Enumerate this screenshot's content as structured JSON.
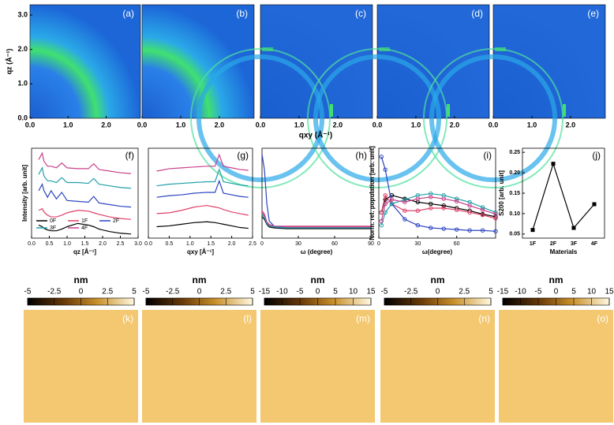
{
  "images": {
    "ylabel": "qz (Å⁻¹)",
    "xlabel": "qxy (Å⁻¹)",
    "xlim": [
      0,
      2.9
    ],
    "ylim": [
      0,
      3.3
    ],
    "xticks": [
      {
        "value": 0,
        "label": "0.0"
      },
      {
        "value": 1,
        "label": "1.0"
      },
      {
        "value": 2,
        "label": "2.0"
      }
    ],
    "yticks": [
      {
        "value": 0,
        "label": "0.0"
      },
      {
        "value": 1,
        "label": "1.0"
      },
      {
        "value": 2,
        "label": "2.0"
      },
      {
        "value": 3,
        "label": "3.0"
      }
    ],
    "panels": [
      "(a)",
      "(b)",
      "(c)",
      "(d)",
      "(e)"
    ]
  },
  "chart_data": [
    {
      "type": "line",
      "label": "(f)",
      "ylabel": "Intensity [arb. unit]",
      "xlabel": "qz [Å⁻¹]",
      "xlim": [
        0,
        3
      ],
      "ylim": [
        0,
        11
      ],
      "xticks": [
        {
          "value": 0,
          "label": "0.0"
        },
        0.5,
        {
          "value": 1,
          "label": "1.0"
        },
        1.5,
        {
          "value": 2,
          "label": "2.0"
        },
        2.5,
        {
          "value": 3,
          "label": "3.0"
        }
      ],
      "legend": "lower right",
      "x": [
        0.2,
        0.3,
        0.35,
        0.45,
        0.55,
        0.7,
        0.85,
        1.0,
        1.3,
        1.6,
        1.75,
        1.9,
        2.2,
        2.5,
        2.8
      ],
      "series": [
        {
          "name": "0F",
          "color": "#000000",
          "values": [
            1.6,
            1.4,
            1.2,
            1.0,
            0.9,
            0.9,
            1.1,
            1.4,
            1.8,
            1.6,
            1.4,
            1.1,
            0.8,
            0.6,
            0.5
          ]
        },
        {
          "name": "1F",
          "color": "#e0406a",
          "values": [
            3.4,
            3.6,
            3.2,
            2.8,
            2.6,
            2.6,
            2.8,
            3.1,
            3.4,
            3.3,
            3.1,
            2.9,
            2.6,
            2.4,
            2.3
          ]
        },
        {
          "name": "2F",
          "color": "#2a44c0",
          "values": [
            5.8,
            6.6,
            5.8,
            5.0,
            5.8,
            4.8,
            5.6,
            4.6,
            4.5,
            4.4,
            5.1,
            4.3,
            4.1,
            3.9,
            3.8
          ]
        },
        {
          "name": "3F",
          "color": "#20a0a8",
          "values": [
            7.8,
            8.6,
            7.6,
            7.0,
            7.0,
            6.8,
            7.4,
            6.8,
            6.8,
            6.7,
            7.3,
            6.6,
            6.4,
            6.2,
            6.1
          ]
        },
        {
          "name": "4F",
          "color": "#c8408a",
          "values": [
            9.6,
            10.4,
            9.4,
            8.8,
            8.8,
            8.6,
            9.2,
            8.6,
            8.5,
            8.5,
            9.1,
            8.4,
            8.2,
            8.0,
            7.9
          ]
        }
      ]
    },
    {
      "type": "line",
      "label": "(g)",
      "xlabel": "qxy [Å⁻¹]",
      "xlim": [
        0,
        2.5
      ],
      "ylim": [
        0,
        11
      ],
      "xticks": [
        {
          "value": 0,
          "label": "0.0"
        },
        0.5,
        {
          "value": 1,
          "label": "1.0"
        },
        1.5,
        {
          "value": 2,
          "label": "2.0"
        },
        2.5
      ],
      "x": [
        0.2,
        0.5,
        0.8,
        1.1,
        1.4,
        1.6,
        1.7,
        1.8,
        2.0,
        2.2,
        2.4
      ],
      "series": [
        {
          "color": "#000000",
          "values": [
            1.4,
            1.5,
            1.7,
            1.9,
            2.0,
            1.9,
            1.8,
            1.7,
            1.5,
            1.3,
            1.2
          ]
        },
        {
          "color": "#e0406a",
          "values": [
            3.0,
            3.1,
            3.4,
            3.8,
            4.0,
            3.8,
            3.7,
            3.5,
            3.2,
            3.0,
            2.8
          ]
        },
        {
          "color": "#2a44c0",
          "values": [
            5.0,
            5.2,
            5.3,
            5.5,
            5.6,
            5.6,
            7.0,
            5.5,
            5.3,
            5.1,
            5.0
          ]
        },
        {
          "color": "#20a0a8",
          "values": [
            6.4,
            6.6,
            6.7,
            6.8,
            6.9,
            6.9,
            8.4,
            6.9,
            6.7,
            6.5,
            6.4
          ]
        },
        {
          "color": "#c8408a",
          "values": [
            8.2,
            8.5,
            8.6,
            8.7,
            8.8,
            8.8,
            10.2,
            8.8,
            8.6,
            8.4,
            8.3
          ]
        }
      ]
    },
    {
      "type": "line",
      "label": "(h)",
      "xlabel": "ω (degree)",
      "xlim": [
        0,
        90
      ],
      "ylim": [
        0,
        10.5
      ],
      "xticks": [
        0,
        30,
        60,
        90
      ],
      "x": [
        0,
        2,
        4,
        6,
        10,
        20,
        40,
        60,
        90
      ],
      "series": [
        {
          "color": "#000000",
          "values": [
            2.5,
            2.2,
            1.6,
            1.3,
            1.2,
            1.1,
            1.1,
            1.1,
            1.1
          ]
        },
        {
          "color": "#e0406a",
          "values": [
            3.0,
            2.6,
            1.8,
            1.5,
            1.3,
            1.3,
            1.3,
            1.3,
            1.3
          ]
        },
        {
          "color": "#2a44c0",
          "values": [
            9.8,
            8,
            4,
            2,
            1.4,
            1.2,
            1.2,
            1.2,
            1.2
          ]
        },
        {
          "color": "#20a0a8",
          "values": [
            2.8,
            2.4,
            1.7,
            1.4,
            1.3,
            1.2,
            1.2,
            1.2,
            1.2
          ]
        },
        {
          "color": "#c8408a",
          "values": [
            3.2,
            2.8,
            1.9,
            1.6,
            1.4,
            1.4,
            1.4,
            1.4,
            1.4
          ]
        }
      ]
    },
    {
      "type": "line",
      "label": "(i)",
      "markers": true,
      "ylabel": "Norm. rel. population [arb. unit]",
      "xlabel": "ω(degree)",
      "xlim": [
        0,
        90
      ],
      "ylim": [
        0,
        10.5
      ],
      "xticks": [
        0,
        30,
        60
      ],
      "x": [
        2,
        5,
        10,
        20,
        30,
        40,
        50,
        60,
        70,
        80,
        90
      ],
      "series": [
        {
          "color": "#000000",
          "values": [
            3,
            4.5,
            5,
            4.6,
            4.2,
            4,
            3.8,
            3.5,
            3.2,
            2.8,
            2.5
          ]
        },
        {
          "color": "#e0406a",
          "values": [
            3,
            5,
            4,
            3.2,
            3.2,
            3.5,
            3.5,
            3.3,
            3,
            2.7,
            2.3
          ]
        },
        {
          "color": "#2a44c0",
          "values": [
            9.5,
            8,
            4,
            2.2,
            1.5,
            1.2,
            1.1,
            1.0,
            0.9,
            0.9,
            0.8
          ]
        },
        {
          "color": "#20a0a8",
          "values": [
            1.5,
            3,
            4,
            4.5,
            5,
            5.2,
            5,
            4.6,
            4.2,
            3.6,
            3
          ]
        },
        {
          "color": "#c8408a",
          "values": [
            2,
            4,
            4.5,
            4.2,
            4.6,
            4.8,
            4.6,
            4.3,
            3.8,
            3.3,
            2.8
          ]
        }
      ]
    },
    {
      "type": "line",
      "label": "(j)",
      "markers": "square",
      "ylabel": "S200 [arb. unit]",
      "xlabel": "Materials",
      "ylim": [
        0.04,
        0.26
      ],
      "yticks": [
        0.05,
        {
          "value": 0.1,
          "label": "0.10"
        },
        0.15,
        {
          "value": 0.2,
          "label": "0.20"
        },
        0.25
      ],
      "categories": [
        "1F",
        "2F",
        "3F",
        "4F"
      ],
      "series": [
        {
          "color": "#000000",
          "values": [
            0.06,
            0.222,
            0.065,
            0.123
          ]
        }
      ]
    }
  ],
  "afm": [
    {
      "label": "(k)",
      "unit": "nm",
      "lim": [
        -5,
        5
      ],
      "ticks": [
        -5,
        -2.5,
        0,
        2.5,
        5
      ]
    },
    {
      "label": "(l)",
      "unit": "nm",
      "lim": [
        -5,
        5
      ],
      "ticks": [
        -5,
        -2.5,
        0,
        2.5,
        5
      ]
    },
    {
      "label": "(m)",
      "unit": "nm",
      "lim": [
        -15,
        15
      ],
      "ticks": [
        -15,
        -10,
        -5,
        0,
        5,
        10,
        15
      ]
    },
    {
      "label": "(n)",
      "unit": "nm",
      "lim": [
        -5,
        5
      ],
      "ticks": [
        -5,
        -2.5,
        0,
        2.5,
        5
      ]
    },
    {
      "label": "(o)",
      "unit": "nm",
      "lim": [
        -15,
        15
      ],
      "ticks": [
        -15,
        -10,
        -5,
        0,
        5,
        10,
        15
      ]
    }
  ]
}
